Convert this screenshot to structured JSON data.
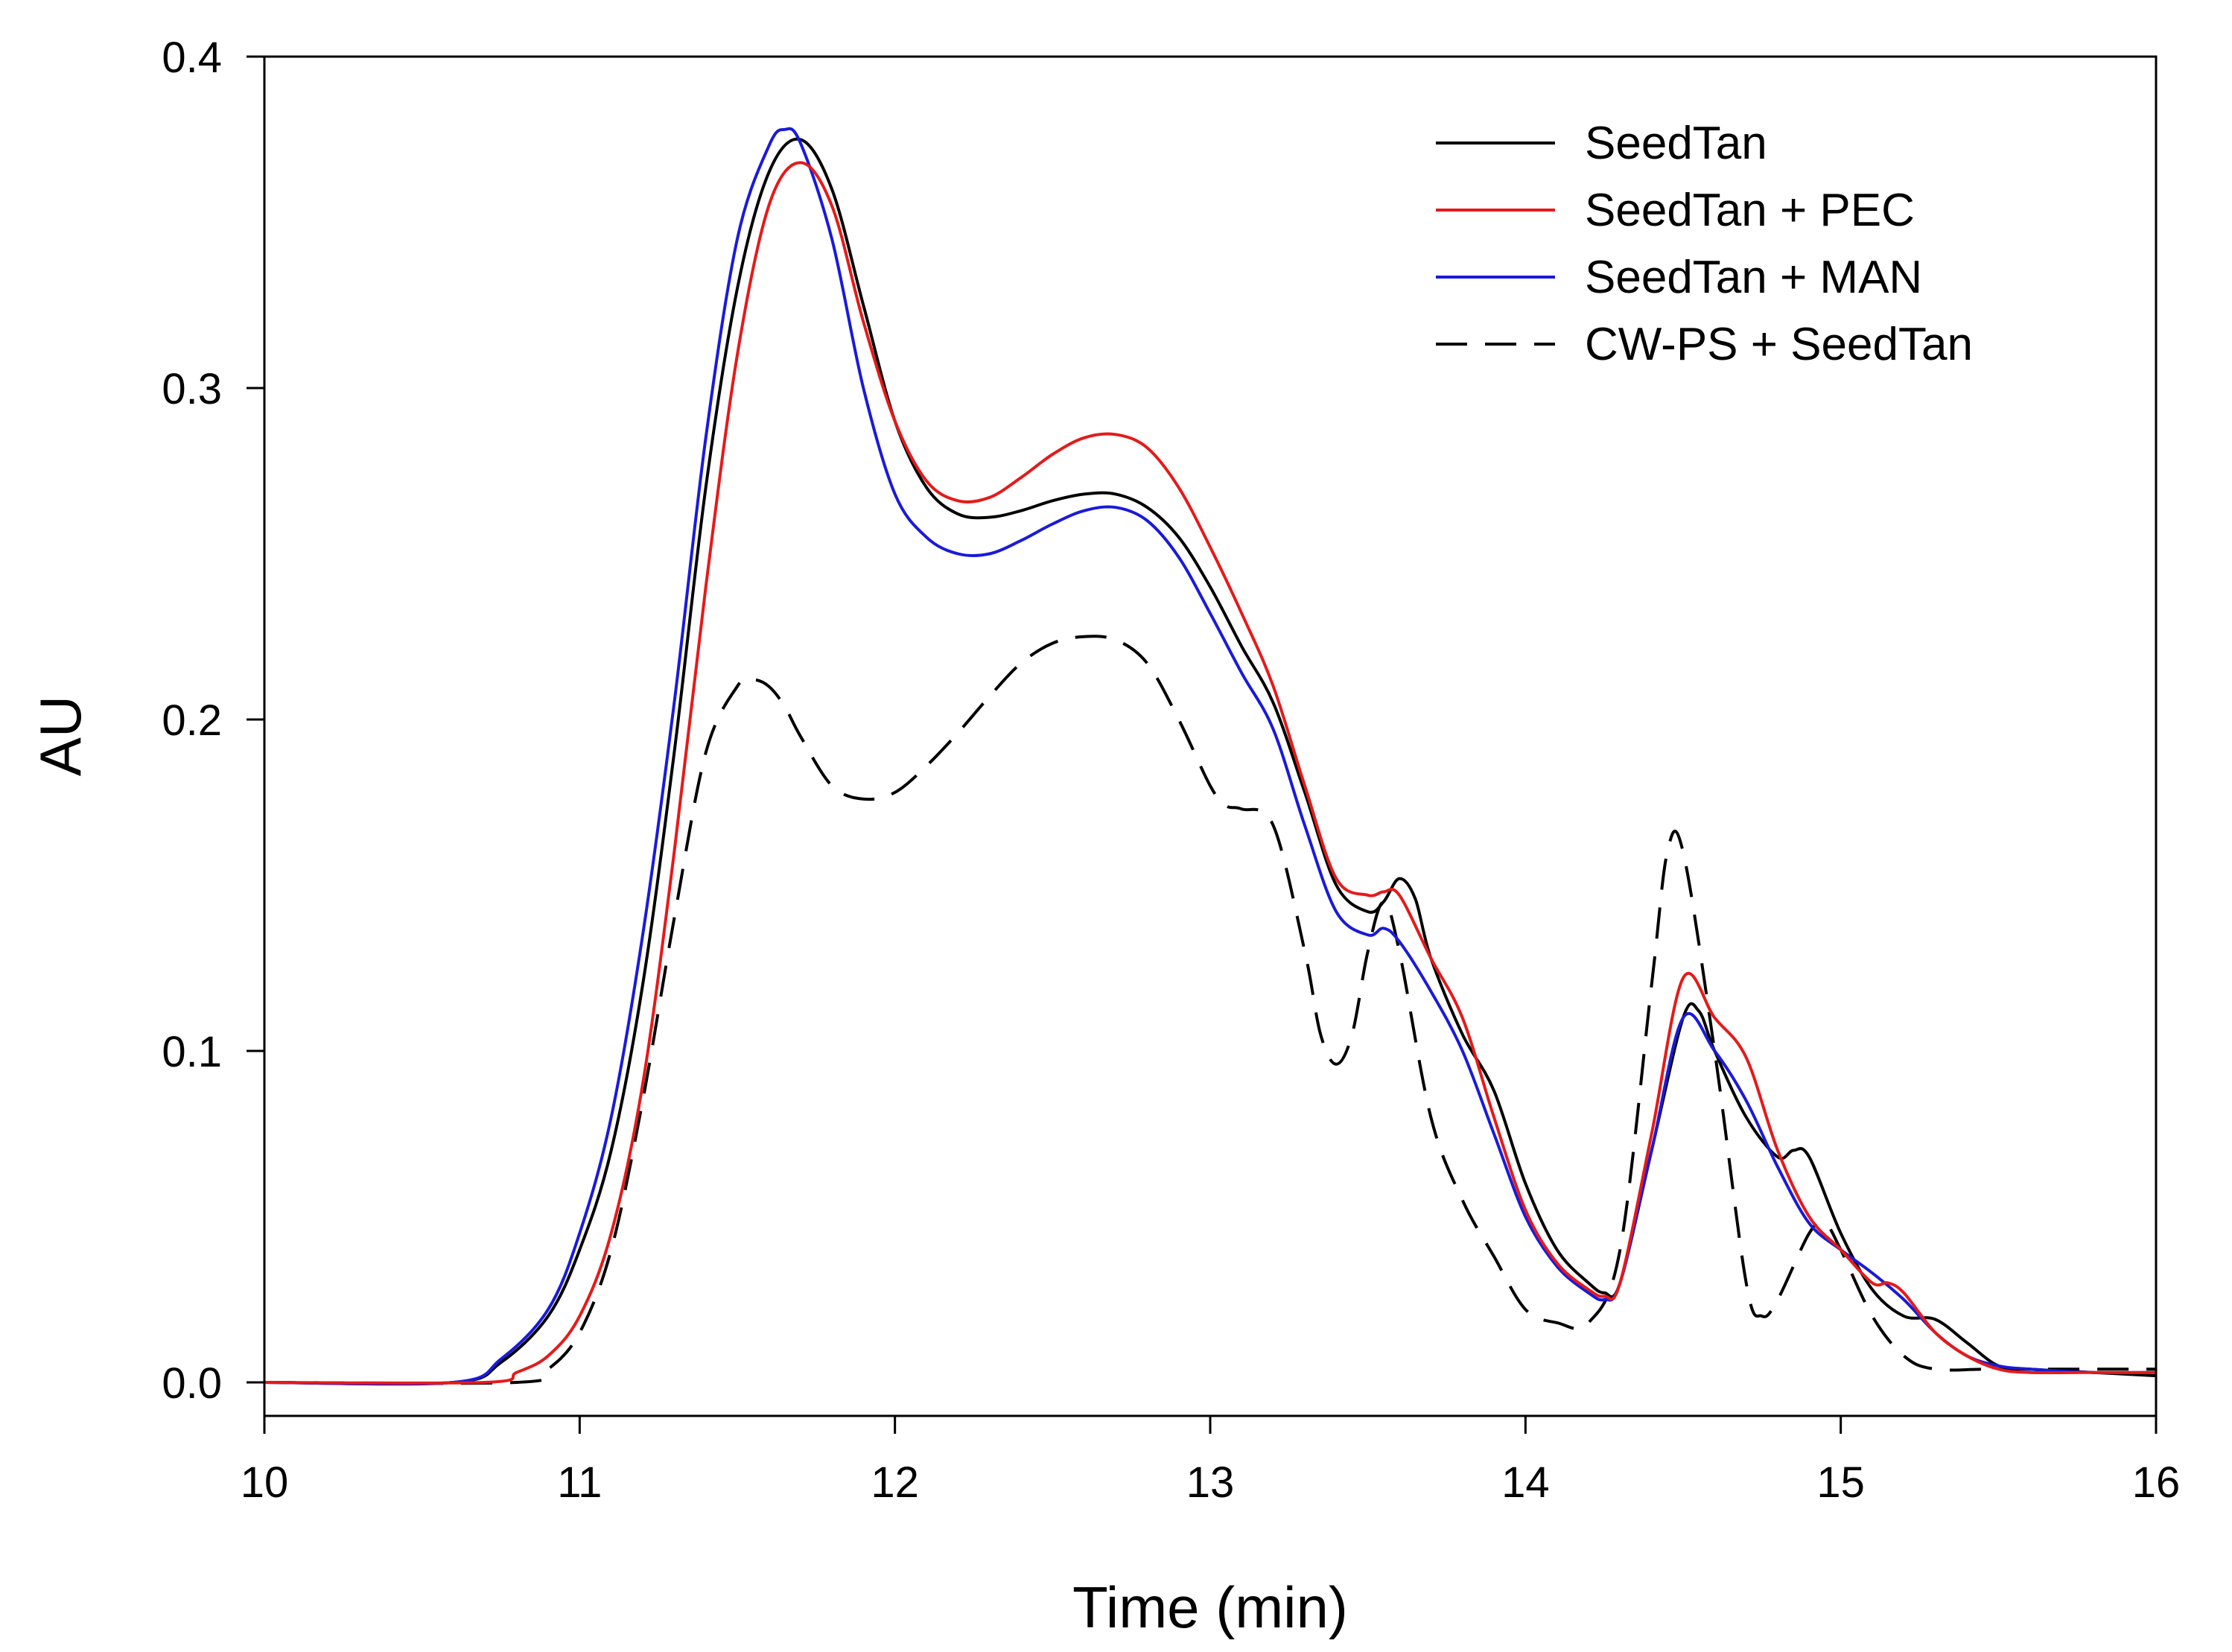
{
  "chart_data": {
    "type": "line",
    "title": "",
    "xlabel": "Time (min)",
    "ylabel": "AU",
    "xlim": [
      10,
      16
    ],
    "ylim": [
      0.0,
      0.4
    ],
    "x_ticks": [
      10,
      11,
      12,
      13,
      14,
      15,
      16
    ],
    "x_tick_labels": [
      "10",
      "11",
      "12",
      "13",
      "14",
      "15",
      "16"
    ],
    "y_ticks": [
      0.0,
      0.1,
      0.2,
      0.3,
      0.4
    ],
    "y_tick_labels": [
      "0.0",
      "0.1",
      "0.2",
      "0.3",
      "0.4"
    ],
    "grid": false,
    "legend_position": "top-right",
    "series": [
      {
        "name": "SeedTan",
        "color": "#000000",
        "dash": "solid",
        "x": [
          10,
          10.6,
          10.75,
          10.9,
          11.0,
          11.1,
          11.2,
          11.3,
          11.4,
          11.5,
          11.6,
          11.7,
          11.8,
          11.9,
          12.0,
          12.1,
          12.2,
          12.3,
          12.4,
          12.5,
          12.6,
          12.7,
          12.8,
          12.9,
          13.0,
          13.1,
          13.2,
          13.3,
          13.4,
          13.5,
          13.55,
          13.6,
          13.65,
          13.7,
          13.8,
          13.9,
          14.0,
          14.1,
          14.2,
          14.25,
          14.3,
          14.4,
          14.5,
          14.55,
          14.6,
          14.7,
          14.8,
          14.85,
          14.9,
          15.0,
          15.1,
          15.2,
          15.3,
          15.4,
          15.5,
          15.6,
          15.8,
          16.0
        ],
        "y": [
          0.0,
          0.0,
          0.006,
          0.02,
          0.04,
          0.07,
          0.12,
          0.19,
          0.27,
          0.33,
          0.365,
          0.375,
          0.36,
          0.325,
          0.29,
          0.27,
          0.262,
          0.261,
          0.263,
          0.266,
          0.268,
          0.268,
          0.264,
          0.255,
          0.24,
          0.222,
          0.205,
          0.178,
          0.15,
          0.142,
          0.145,
          0.152,
          0.146,
          0.128,
          0.105,
          0.088,
          0.06,
          0.04,
          0.03,
          0.027,
          0.03,
          0.07,
          0.11,
          0.112,
          0.1,
          0.08,
          0.068,
          0.07,
          0.068,
          0.045,
          0.028,
          0.02,
          0.019,
          0.012,
          0.005,
          0.004,
          0.003,
          0.002
        ]
      },
      {
        "name": "SeedTan + PEC",
        "color": "#e51a1a",
        "dash": "solid",
        "x": [
          10,
          10.7,
          10.8,
          10.9,
          11.0,
          11.1,
          11.2,
          11.3,
          11.4,
          11.5,
          11.6,
          11.7,
          11.8,
          11.9,
          12.0,
          12.1,
          12.2,
          12.3,
          12.4,
          12.5,
          12.6,
          12.7,
          12.8,
          12.9,
          13.0,
          13.1,
          13.2,
          13.3,
          13.4,
          13.5,
          13.55,
          13.6,
          13.7,
          13.8,
          13.9,
          14.0,
          14.1,
          14.2,
          14.25,
          14.3,
          14.4,
          14.5,
          14.6,
          14.7,
          14.8,
          14.9,
          15.0,
          15.1,
          15.15,
          15.2,
          15.3,
          15.4,
          15.5,
          15.6,
          15.8,
          16.0
        ],
        "y": [
          0.0,
          0.0,
          0.003,
          0.008,
          0.02,
          0.045,
          0.09,
          0.16,
          0.24,
          0.31,
          0.355,
          0.368,
          0.355,
          0.32,
          0.29,
          0.272,
          0.266,
          0.267,
          0.273,
          0.28,
          0.285,
          0.286,
          0.282,
          0.27,
          0.252,
          0.232,
          0.21,
          0.18,
          0.152,
          0.147,
          0.148,
          0.147,
          0.128,
          0.11,
          0.08,
          0.052,
          0.036,
          0.028,
          0.026,
          0.03,
          0.075,
          0.122,
          0.11,
          0.098,
          0.07,
          0.05,
          0.04,
          0.03,
          0.03,
          0.027,
          0.015,
          0.008,
          0.004,
          0.003,
          0.003,
          0.003
        ]
      },
      {
        "name": "SeedTan + MAN",
        "color": "#1a1ad9",
        "dash": "solid",
        "x": [
          10,
          10.6,
          10.75,
          10.9,
          11.0,
          11.1,
          11.2,
          11.3,
          11.4,
          11.5,
          11.6,
          11.65,
          11.7,
          11.8,
          11.9,
          12.0,
          12.1,
          12.2,
          12.3,
          12.4,
          12.5,
          12.6,
          12.7,
          12.8,
          12.9,
          13.0,
          13.1,
          13.2,
          13.3,
          13.4,
          13.5,
          13.55,
          13.6,
          13.7,
          13.8,
          13.9,
          14.0,
          14.1,
          14.2,
          14.25,
          14.3,
          14.4,
          14.5,
          14.6,
          14.7,
          14.8,
          14.9,
          15.0,
          15.1,
          15.2,
          15.3,
          15.4,
          15.5,
          15.6,
          15.8,
          16.0
        ],
        "y": [
          0.0,
          0.0,
          0.007,
          0.022,
          0.045,
          0.08,
          0.135,
          0.205,
          0.285,
          0.345,
          0.373,
          0.378,
          0.374,
          0.345,
          0.3,
          0.268,
          0.255,
          0.25,
          0.25,
          0.254,
          0.259,
          0.263,
          0.264,
          0.26,
          0.249,
          0.232,
          0.214,
          0.197,
          0.168,
          0.142,
          0.135,
          0.137,
          0.133,
          0.118,
          0.1,
          0.075,
          0.05,
          0.035,
          0.027,
          0.025,
          0.03,
          0.07,
          0.11,
          0.1,
          0.085,
          0.065,
          0.048,
          0.04,
          0.033,
          0.025,
          0.015,
          0.008,
          0.005,
          0.004,
          0.003,
          0.003
        ]
      },
      {
        "name": "CW-PS + SeedTan",
        "color": "#000000",
        "dash": "dashed",
        "x": [
          10,
          10.8,
          10.9,
          11.0,
          11.1,
          11.2,
          11.3,
          11.4,
          11.5,
          11.55,
          11.6,
          11.65,
          11.7,
          11.8,
          11.9,
          12.0,
          12.1,
          12.2,
          12.3,
          12.4,
          12.5,
          12.6,
          12.7,
          12.8,
          12.9,
          13.0,
          13.05,
          13.1,
          13.2,
          13.3,
          13.35,
          13.4,
          13.45,
          13.5,
          13.55,
          13.6,
          13.7,
          13.8,
          13.9,
          14.0,
          14.1,
          14.2,
          14.3,
          14.4,
          14.45,
          14.5,
          14.6,
          14.7,
          14.75,
          14.8,
          14.9,
          14.95,
          15.0,
          15.1,
          15.2,
          15.3,
          15.5,
          16.0
        ],
        "y": [
          0.0,
          0.0,
          0.004,
          0.015,
          0.04,
          0.085,
          0.14,
          0.19,
          0.21,
          0.212,
          0.21,
          0.204,
          0.195,
          0.18,
          0.176,
          0.178,
          0.186,
          0.196,
          0.207,
          0.217,
          0.223,
          0.225,
          0.224,
          0.217,
          0.2,
          0.18,
          0.174,
          0.173,
          0.168,
          0.13,
          0.105,
          0.096,
          0.105,
          0.13,
          0.145,
          0.13,
          0.08,
          0.055,
          0.038,
          0.022,
          0.018,
          0.018,
          0.04,
          0.12,
          0.16,
          0.16,
          0.1,
          0.03,
          0.02,
          0.025,
          0.045,
          0.048,
          0.04,
          0.02,
          0.008,
          0.004,
          0.004,
          0.004
        ]
      }
    ]
  }
}
